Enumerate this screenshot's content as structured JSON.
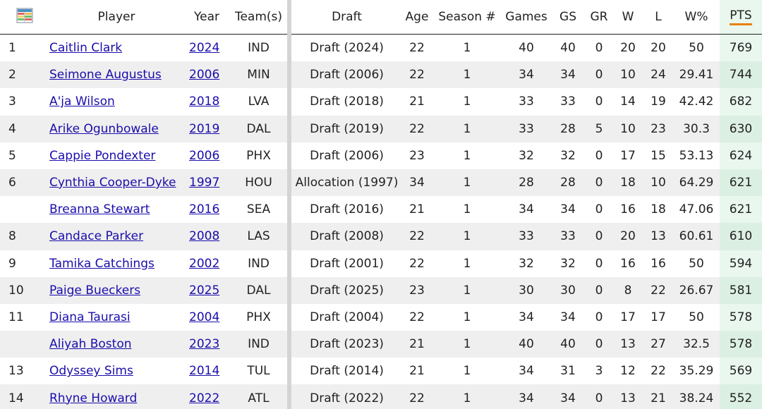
{
  "header": {
    "icon": "table-settings-icon",
    "player": "Player",
    "year": "Year",
    "teams": "Team(s)",
    "draft": "Draft",
    "age": "Age",
    "season": "Season #",
    "games": "Games",
    "gs": "GS",
    "gr": "GR",
    "w": "W",
    "l": "L",
    "wpct": "W%",
    "pts": "PTS"
  },
  "colors": {
    "link": "#1a0dab",
    "pts_highlight": "#e9f7ee",
    "pts_underline": "#e8820c",
    "stripe": "#efefef"
  },
  "rows": [
    {
      "rank": "1",
      "player": "Caitlin Clark",
      "year": "2024",
      "team": "IND",
      "draft": "Draft (2024)",
      "age": "22",
      "season": "1",
      "games": "40",
      "gs": "40",
      "gr": "0",
      "w": "20",
      "l": "20",
      "wpct": "50",
      "pts": "769"
    },
    {
      "rank": "2",
      "player": "Seimone Augustus",
      "year": "2006",
      "team": "MIN",
      "draft": "Draft (2006)",
      "age": "22",
      "season": "1",
      "games": "34",
      "gs": "34",
      "gr": "0",
      "w": "10",
      "l": "24",
      "wpct": "29.41",
      "pts": "744"
    },
    {
      "rank": "3",
      "player": "A'ja Wilson",
      "year": "2018",
      "team": "LVA",
      "draft": "Draft (2018)",
      "age": "21",
      "season": "1",
      "games": "33",
      "gs": "33",
      "gr": "0",
      "w": "14",
      "l": "19",
      "wpct": "42.42",
      "pts": "682"
    },
    {
      "rank": "4",
      "player": "Arike Ogunbowale",
      "year": "2019",
      "team": "DAL",
      "draft": "Draft (2019)",
      "age": "22",
      "season": "1",
      "games": "33",
      "gs": "28",
      "gr": "5",
      "w": "10",
      "l": "23",
      "wpct": "30.3",
      "pts": "630"
    },
    {
      "rank": "5",
      "player": "Cappie Pondexter",
      "year": "2006",
      "team": "PHX",
      "draft": "Draft (2006)",
      "age": "23",
      "season": "1",
      "games": "32",
      "gs": "32",
      "gr": "0",
      "w": "17",
      "l": "15",
      "wpct": "53.13",
      "pts": "624"
    },
    {
      "rank": "6",
      "player": "Cynthia Cooper-Dyke",
      "year": "1997",
      "team": "HOU",
      "draft": "Allocation (1997)",
      "age": "34",
      "season": "1",
      "games": "28",
      "gs": "28",
      "gr": "0",
      "w": "18",
      "l": "10",
      "wpct": "64.29",
      "pts": "621"
    },
    {
      "rank": "",
      "player": "Breanna Stewart",
      "year": "2016",
      "team": "SEA",
      "draft": "Draft (2016)",
      "age": "21",
      "season": "1",
      "games": "34",
      "gs": "34",
      "gr": "0",
      "w": "16",
      "l": "18",
      "wpct": "47.06",
      "pts": "621"
    },
    {
      "rank": "8",
      "player": "Candace Parker",
      "year": "2008",
      "team": "LAS",
      "draft": "Draft (2008)",
      "age": "22",
      "season": "1",
      "games": "33",
      "gs": "33",
      "gr": "0",
      "w": "20",
      "l": "13",
      "wpct": "60.61",
      "pts": "610"
    },
    {
      "rank": "9",
      "player": "Tamika Catchings",
      "year": "2002",
      "team": "IND",
      "draft": "Draft (2001)",
      "age": "22",
      "season": "1",
      "games": "32",
      "gs": "32",
      "gr": "0",
      "w": "16",
      "l": "16",
      "wpct": "50",
      "pts": "594"
    },
    {
      "rank": "10",
      "player": "Paige Bueckers",
      "year": "2025",
      "team": "DAL",
      "draft": "Draft (2025)",
      "age": "23",
      "season": "1",
      "games": "30",
      "gs": "30",
      "gr": "0",
      "w": "8",
      "l": "22",
      "wpct": "26.67",
      "pts": "581"
    },
    {
      "rank": "11",
      "player": "Diana Taurasi",
      "year": "2004",
      "team": "PHX",
      "draft": "Draft (2004)",
      "age": "22",
      "season": "1",
      "games": "34",
      "gs": "34",
      "gr": "0",
      "w": "17",
      "l": "17",
      "wpct": "50",
      "pts": "578"
    },
    {
      "rank": "",
      "player": "Aliyah Boston",
      "year": "2023",
      "team": "IND",
      "draft": "Draft (2023)",
      "age": "21",
      "season": "1",
      "games": "40",
      "gs": "40",
      "gr": "0",
      "w": "13",
      "l": "27",
      "wpct": "32.5",
      "pts": "578"
    },
    {
      "rank": "13",
      "player": "Odyssey Sims",
      "year": "2014",
      "team": "TUL",
      "draft": "Draft (2014)",
      "age": "21",
      "season": "1",
      "games": "34",
      "gs": "31",
      "gr": "3",
      "w": "12",
      "l": "22",
      "wpct": "35.29",
      "pts": "569"
    },
    {
      "rank": "14",
      "player": "Rhyne Howard",
      "year": "2022",
      "team": "ATL",
      "draft": "Draft (2022)",
      "age": "22",
      "season": "1",
      "games": "34",
      "gs": "34",
      "gr": "0",
      "w": "13",
      "l": "21",
      "wpct": "38.24",
      "pts": "552"
    }
  ]
}
